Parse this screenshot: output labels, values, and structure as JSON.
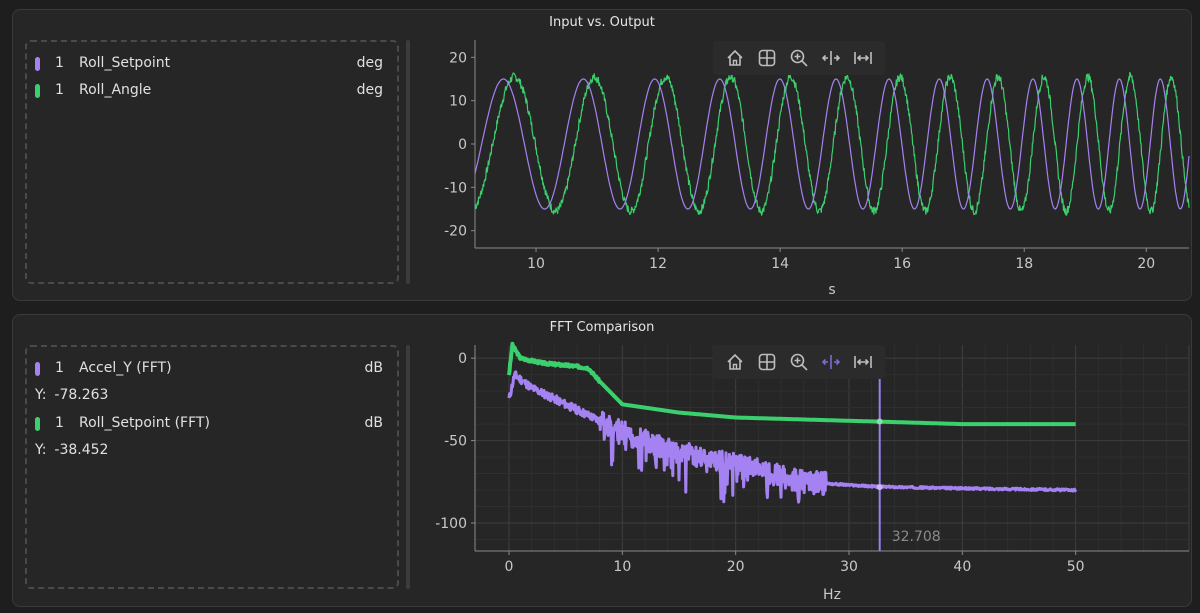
{
  "top_plot": {
    "title": "Input vs. Output",
    "legend": [
      {
        "index": "1",
        "name": "Roll_Setpoint",
        "unit": "deg",
        "color": "#a582f2"
      },
      {
        "index": "1",
        "name": "Roll_Angle",
        "unit": "deg",
        "color": "#3ccf6e"
      }
    ],
    "xlabel": "s",
    "x_ticks": [
      "10",
      "12",
      "14",
      "16",
      "18",
      "20"
    ],
    "y_ticks": [
      "20",
      "10",
      "0",
      "-10",
      "-20"
    ]
  },
  "bottom_plot": {
    "title": "FFT Comparison",
    "legend": [
      {
        "index": "1",
        "name": "Accel_Y (FFT)",
        "unit": "dB",
        "color": "#a582f2",
        "y_label": "Y:",
        "y_value": "-78.263"
      },
      {
        "index": "1",
        "name": "Roll_Setpoint (FFT)",
        "unit": "dB",
        "color": "#3ccf6e",
        "y_label": "Y:",
        "y_value": "-38.452"
      }
    ],
    "xlabel": "Hz",
    "x_ticks": [
      "0",
      "10",
      "20",
      "30",
      "40",
      "50"
    ],
    "y_ticks": [
      "0",
      "-50",
      "-100"
    ],
    "cursor_label": "32.708"
  },
  "toolbar": {
    "icons": [
      "home-icon",
      "grid-icon",
      "zoom-icon",
      "pan-x-icon",
      "fit-x-icon"
    ]
  },
  "chart_data": [
    {
      "type": "line",
      "title": "Input vs. Output",
      "xlabel": "s",
      "ylabel": "",
      "xlim": [
        9.0,
        20.7
      ],
      "ylim": [
        -24,
        24
      ],
      "grid": false,
      "series": [
        {
          "name": "Roll_Setpoint",
          "color": "#a582f2",
          "description_values": {
            "amplitude": 15,
            "frequency_start_hz": 0.68,
            "frequency_end_hz": 1.55
          }
        },
        {
          "name": "Roll_Angle",
          "color": "#3ccf6e",
          "description_values": {
            "amplitude": 15.5,
            "lag_s": 0.18
          }
        }
      ]
    },
    {
      "type": "line",
      "title": "FFT Comparison",
      "xlabel": "Hz",
      "ylabel": "",
      "xlim": [
        -3,
        60
      ],
      "ylim": [
        -117,
        8
      ],
      "grid": true,
      "cursor_x": 32.708,
      "series": [
        {
          "name": "Accel_Y (FFT)",
          "color": "#a582f2",
          "x": [
            0,
            0.5,
            2,
            5,
            8,
            10,
            14,
            18,
            22,
            26,
            30,
            32.7,
            40,
            50
          ],
          "y": [
            -25,
            -10,
            -18,
            -28,
            -38,
            -45,
            -55,
            -62,
            -68,
            -75,
            -77,
            -78,
            -79,
            -80
          ]
        },
        {
          "name": "Roll_Setpoint (FFT)",
          "color": "#3ccf6e",
          "x": [
            0,
            0.3,
            1,
            3,
            6,
            7,
            8,
            10,
            15,
            20,
            30,
            32.7,
            40,
            50
          ],
          "y": [
            -10,
            8,
            0,
            -3,
            -5,
            -6,
            -14,
            -28,
            -33,
            -36,
            -38,
            -38.5,
            -40,
            -40
          ]
        }
      ]
    }
  ]
}
